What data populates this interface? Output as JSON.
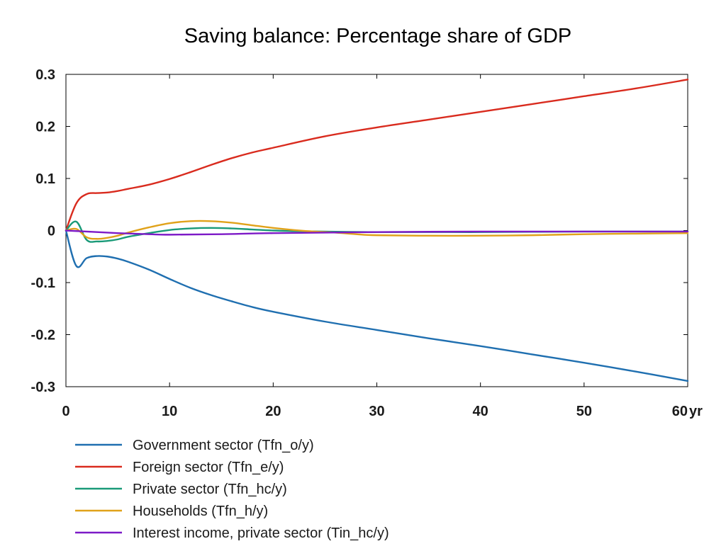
{
  "chart_data": {
    "type": "line",
    "title": "Saving balance: Percentage share of GDP",
    "xlabel": "",
    "ylabel": "",
    "x_unit_label": "yr",
    "xlim": [
      0,
      60
    ],
    "ylim": [
      -0.3,
      0.3
    ],
    "x_ticks": [
      0,
      10,
      20,
      30,
      40,
      50,
      60
    ],
    "x_tick_labels": [
      "0",
      "10",
      "20",
      "30",
      "40",
      "50",
      "60"
    ],
    "y_ticks": [
      0.3,
      0.2,
      0.1,
      0,
      -0.1,
      -0.2,
      -0.3
    ],
    "y_tick_labels": [
      "0.3",
      "0.2",
      "0.1",
      "0",
      "-0.1",
      "-0.2",
      "-0.3"
    ],
    "grid": false,
    "legend_position": "bottom",
    "series": [
      {
        "name": "Government sector (Tfn_o/y)",
        "color": "#1f6fb0",
        "points": [
          [
            0,
            0
          ],
          [
            1,
            -0.068
          ],
          [
            2,
            -0.053
          ],
          [
            3,
            -0.049
          ],
          [
            4,
            -0.05
          ],
          [
            5,
            -0.054
          ],
          [
            6,
            -0.06
          ],
          [
            8,
            -0.075
          ],
          [
            10,
            -0.093
          ],
          [
            12,
            -0.11
          ],
          [
            14,
            -0.124
          ],
          [
            16,
            -0.136
          ],
          [
            18,
            -0.147
          ],
          [
            20,
            -0.156
          ],
          [
            25,
            -0.175
          ],
          [
            30,
            -0.191
          ],
          [
            35,
            -0.207
          ],
          [
            40,
            -0.222
          ],
          [
            45,
            -0.238
          ],
          [
            50,
            -0.254
          ],
          [
            55,
            -0.271
          ],
          [
            60,
            -0.289
          ]
        ]
      },
      {
        "name": "Foreign sector (Tfn_e/y)",
        "color": "#d92b1e",
        "points": [
          [
            0,
            0
          ],
          [
            1,
            0.052
          ],
          [
            2,
            0.07
          ],
          [
            3,
            0.072
          ],
          [
            4,
            0.073
          ],
          [
            5,
            0.076
          ],
          [
            6,
            0.08
          ],
          [
            8,
            0.088
          ],
          [
            10,
            0.099
          ],
          [
            12,
            0.112
          ],
          [
            14,
            0.126
          ],
          [
            16,
            0.139
          ],
          [
            18,
            0.15
          ],
          [
            20,
            0.159
          ],
          [
            25,
            0.181
          ],
          [
            30,
            0.198
          ],
          [
            35,
            0.213
          ],
          [
            40,
            0.228
          ],
          [
            45,
            0.243
          ],
          [
            50,
            0.258
          ],
          [
            55,
            0.273
          ],
          [
            60,
            0.29
          ]
        ]
      },
      {
        "name": "Private sector (Tfn_hc/y)",
        "color": "#1a9a78",
        "points": [
          [
            0,
            0
          ],
          [
            1,
            0.017
          ],
          [
            2,
            -0.018
          ],
          [
            3,
            -0.021
          ],
          [
            4,
            -0.02
          ],
          [
            5,
            -0.017
          ],
          [
            6,
            -0.012
          ],
          [
            8,
            -0.005
          ],
          [
            10,
            0.001
          ],
          [
            12,
            0.004
          ],
          [
            14,
            0.005
          ],
          [
            16,
            0.004
          ],
          [
            18,
            0.002
          ],
          [
            20,
            0.0
          ],
          [
            22,
            -0.001
          ],
          [
            25,
            -0.002
          ],
          [
            30,
            -0.003
          ],
          [
            40,
            -0.003
          ],
          [
            50,
            -0.002
          ],
          [
            60,
            -0.002
          ]
        ]
      },
      {
        "name": "Households (Tfn_h/y)",
        "color": "#e0a21a",
        "points": [
          [
            0,
            0
          ],
          [
            1,
            0.003
          ],
          [
            2,
            -0.013
          ],
          [
            3,
            -0.016
          ],
          [
            4,
            -0.014
          ],
          [
            5,
            -0.01
          ],
          [
            6,
            -0.004
          ],
          [
            8,
            0.006
          ],
          [
            10,
            0.014
          ],
          [
            12,
            0.018
          ],
          [
            14,
            0.018
          ],
          [
            16,
            0.015
          ],
          [
            18,
            0.01
          ],
          [
            20,
            0.005
          ],
          [
            22,
            0.001
          ],
          [
            24,
            -0.002
          ],
          [
            26,
            -0.004
          ],
          [
            28,
            -0.007
          ],
          [
            30,
            -0.009
          ],
          [
            35,
            -0.01
          ],
          [
            40,
            -0.01
          ],
          [
            45,
            -0.009
          ],
          [
            50,
            -0.007
          ],
          [
            55,
            -0.006
          ],
          [
            60,
            -0.005
          ]
        ]
      },
      {
        "name": "Interest income, private sector (Tin_hc/y)",
        "color": "#7d1ac7",
        "points": [
          [
            0,
            0
          ],
          [
            2,
            -0.002
          ],
          [
            5,
            -0.005
          ],
          [
            8,
            -0.007
          ],
          [
            10,
            -0.008
          ],
          [
            15,
            -0.007
          ],
          [
            20,
            -0.005
          ],
          [
            30,
            -0.003
          ],
          [
            40,
            -0.002
          ],
          [
            50,
            -0.002
          ],
          [
            60,
            -0.002
          ]
        ]
      }
    ]
  }
}
